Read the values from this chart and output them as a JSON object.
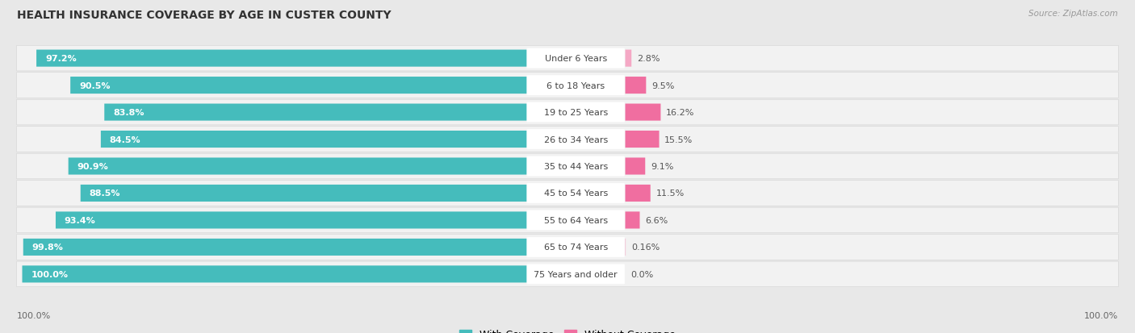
{
  "title": "HEALTH INSURANCE COVERAGE BY AGE IN CUSTER COUNTY",
  "source": "Source: ZipAtlas.com",
  "categories": [
    "Under 6 Years",
    "6 to 18 Years",
    "19 to 25 Years",
    "26 to 34 Years",
    "35 to 44 Years",
    "45 to 54 Years",
    "55 to 64 Years",
    "65 to 74 Years",
    "75 Years and older"
  ],
  "with_coverage": [
    97.2,
    90.5,
    83.8,
    84.5,
    90.9,
    88.5,
    93.4,
    99.8,
    100.0
  ],
  "without_coverage": [
    2.8,
    9.5,
    16.2,
    15.5,
    9.1,
    11.5,
    6.6,
    0.16,
    0.0
  ],
  "with_coverage_labels": [
    "97.2%",
    "90.5%",
    "83.8%",
    "84.5%",
    "90.9%",
    "88.5%",
    "93.4%",
    "99.8%",
    "100.0%"
  ],
  "without_coverage_labels": [
    "2.8%",
    "9.5%",
    "16.2%",
    "15.5%",
    "9.1%",
    "11.5%",
    "6.6%",
    "0.16%",
    "0.0%"
  ],
  "color_with": "#45BCBC",
  "color_without": "#F06EA0",
  "color_without_light": "#F5A8C5",
  "bg_color": "#e8e8e8",
  "row_bg_color": "#f2f2f2",
  "title_fontsize": 10,
  "label_fontsize": 8,
  "cat_fontsize": 8,
  "legend_fontsize": 9,
  "source_fontsize": 7.5,
  "left_axis_label": "100.0%",
  "right_axis_label": "100.0%"
}
